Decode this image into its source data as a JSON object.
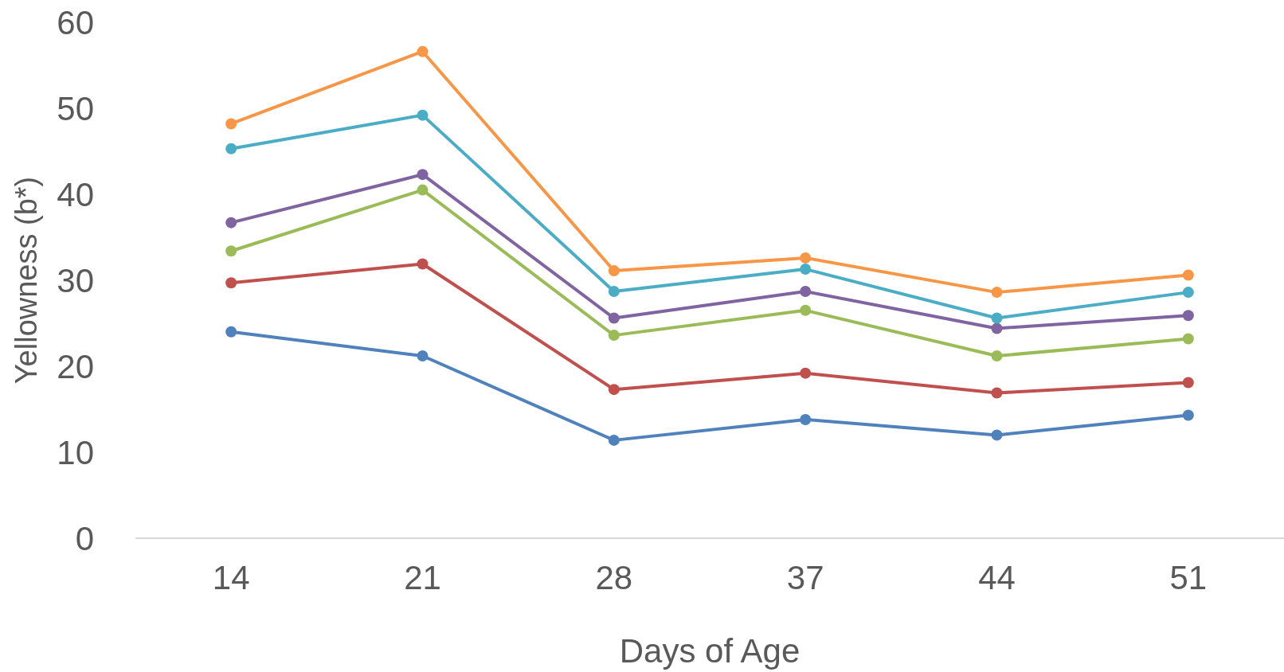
{
  "chart_data": {
    "type": "line",
    "xlabel": "Days of Age",
    "ylabel": "Yellowness (b*)",
    "categories": [
      "14",
      "21",
      "28",
      "37",
      "44",
      "51"
    ],
    "ylim": [
      0,
      60
    ],
    "yticks": [
      0,
      10,
      20,
      30,
      40,
      50,
      60
    ],
    "grid": false,
    "marker": "circle",
    "line_style": "solid",
    "series": [
      {
        "color": "#4f81bd",
        "values": [
          24.0,
          21.2,
          11.4,
          13.8,
          12.0,
          14.3
        ]
      },
      {
        "color": "#c0504d",
        "values": [
          29.7,
          31.9,
          17.3,
          19.2,
          16.9,
          18.1
        ]
      },
      {
        "color": "#9bbb59",
        "values": [
          33.4,
          40.5,
          23.6,
          26.5,
          21.2,
          23.2
        ]
      },
      {
        "color": "#8064a2",
        "values": [
          36.7,
          42.3,
          25.6,
          28.7,
          24.4,
          25.9
        ]
      },
      {
        "color": "#4bacc6",
        "values": [
          45.3,
          49.2,
          28.7,
          31.3,
          25.6,
          28.6
        ]
      },
      {
        "color": "#f79646",
        "values": [
          48.2,
          56.6,
          31.1,
          32.6,
          28.6,
          30.6
        ]
      }
    ]
  }
}
